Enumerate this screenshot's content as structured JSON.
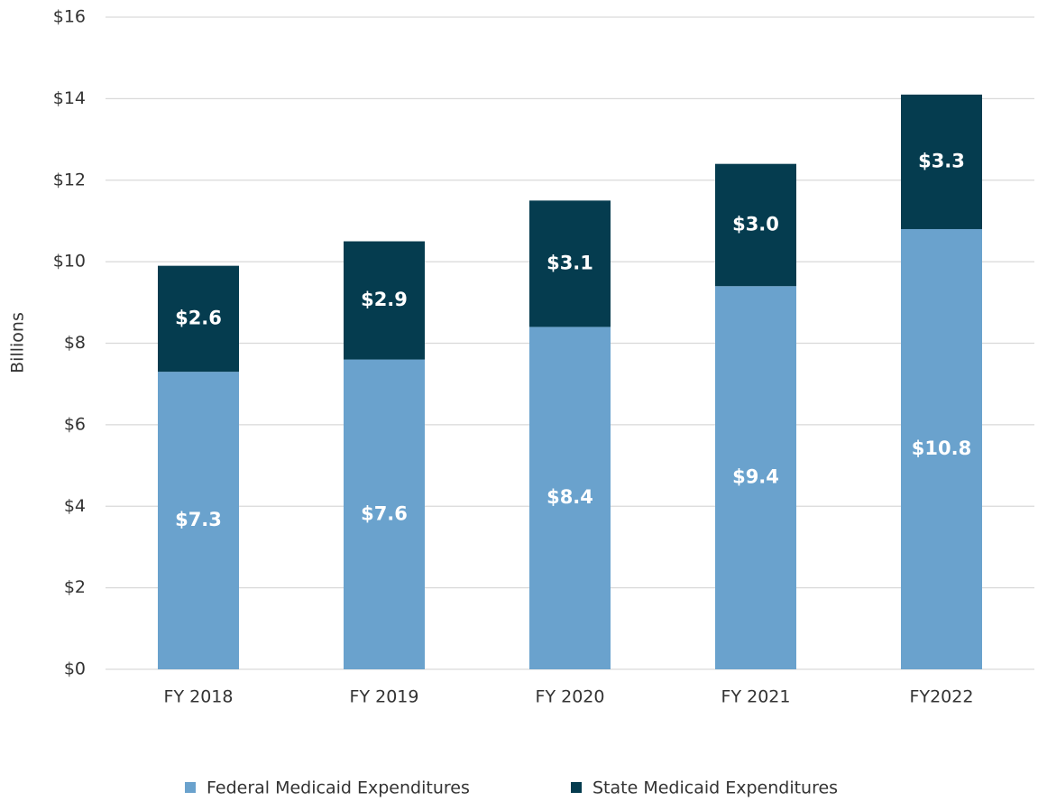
{
  "chart_data": {
    "type": "stacked_bar",
    "y_axis_label": "Billions",
    "categories": [
      "FY 2018",
      "FY 2019",
      "FY 2020",
      "FY 2021",
      "FY2022"
    ],
    "series": [
      {
        "name": "Federal Medicaid Expenditures",
        "color": "#6aa2cd",
        "values": [
          7.3,
          7.6,
          8.4,
          9.4,
          10.8
        ],
        "value_labels": [
          "$7.3",
          "$7.6",
          "$8.4",
          "$9.4",
          "$10.8"
        ]
      },
      {
        "name": "State Medicaid Expenditures",
        "color": "#053c4f",
        "values": [
          2.6,
          2.9,
          3.1,
          3.0,
          3.3
        ],
        "value_labels": [
          "$2.6",
          "$2.9",
          "$3.1",
          "$3.0",
          "$3.3"
        ]
      }
    ],
    "ylim": [
      0,
      16
    ],
    "yticks": [
      {
        "value": 0,
        "label": "$0"
      },
      {
        "value": 2,
        "label": "$2"
      },
      {
        "value": 4,
        "label": "$4"
      },
      {
        "value": 6,
        "label": "$6"
      },
      {
        "value": 8,
        "label": "$8"
      },
      {
        "value": 10,
        "label": "$10"
      },
      {
        "value": 12,
        "label": "$12"
      },
      {
        "value": 14,
        "label": "$14"
      },
      {
        "value": 16,
        "label": "$16"
      }
    ],
    "grid": true,
    "legend": "bottom"
  }
}
